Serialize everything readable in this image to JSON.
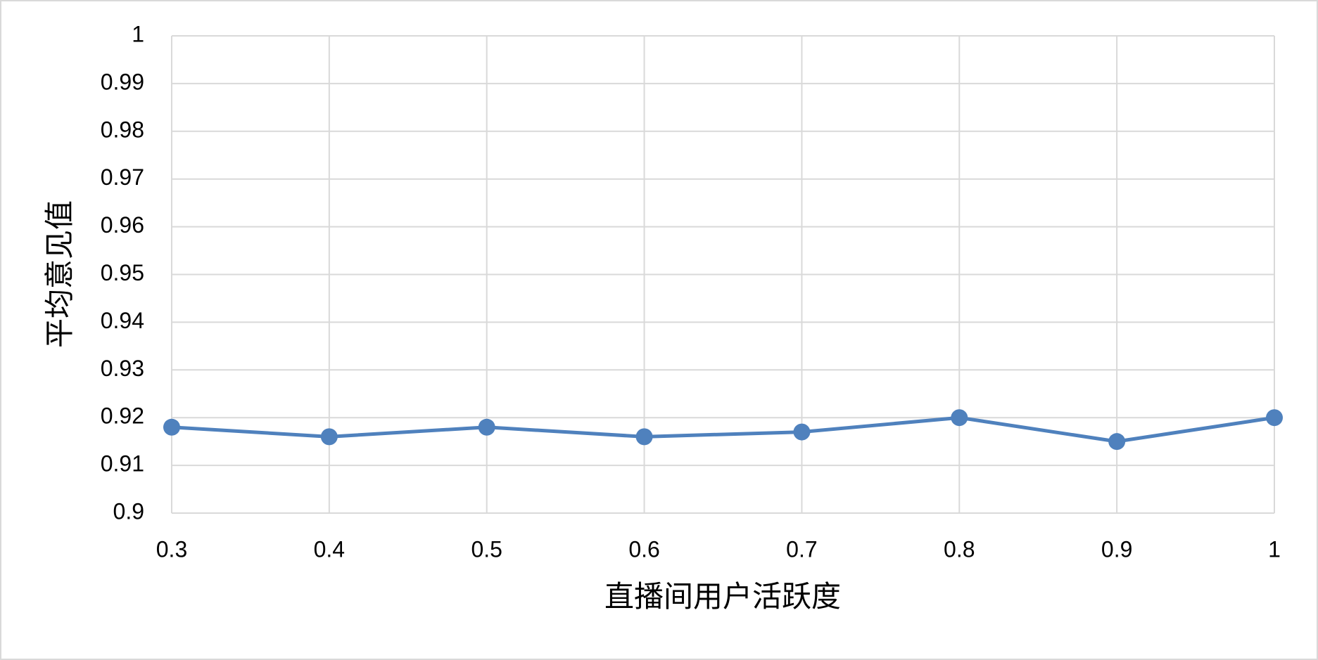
{
  "chart_data": {
    "type": "line",
    "x_label": "直播间用户活跃度",
    "y_label": "平均意见值",
    "x": [
      0.3,
      0.4,
      0.5,
      0.6,
      0.7,
      0.8,
      0.9,
      1
    ],
    "series": [
      {
        "color": "#4f81bd",
        "values": [
          0.918,
          0.916,
          0.918,
          0.916,
          0.917,
          0.92,
          0.915,
          0.92
        ]
      }
    ],
    "xlim": [
      0.3,
      1
    ],
    "xticks": [
      0.3,
      0.4,
      0.5,
      0.6,
      0.7,
      0.8,
      0.9,
      1
    ],
    "ylim": [
      0.9,
      1
    ],
    "yticks": [
      0.9,
      0.91,
      0.92,
      0.93,
      0.94,
      0.95,
      0.96,
      0.97,
      0.98,
      0.99,
      1
    ],
    "grid": true
  }
}
